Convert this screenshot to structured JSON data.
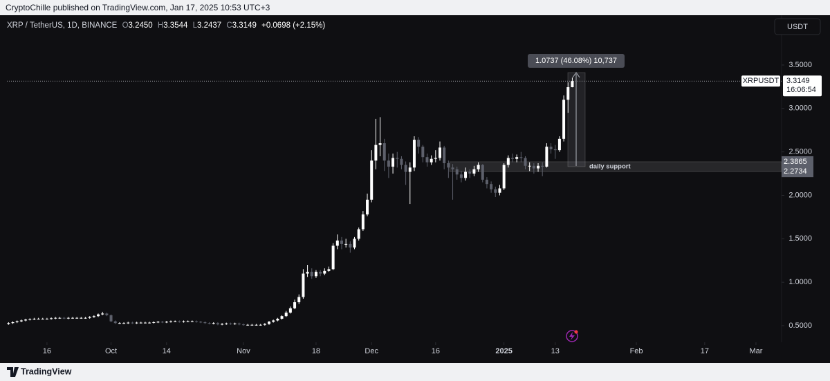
{
  "header": {
    "publisher": "CryptoChille published on TradingView.com, Jan 17, 2025 10:53 UTC+3"
  },
  "chart_data": {
    "type": "candlestick",
    "title": "XRP / TetherUS, 1D, BINANCE",
    "legend": {
      "o": "O",
      "open": "3.2450",
      "h": "H",
      "high": "3.3544",
      "l": "L",
      "low": "3.2437",
      "c": "C",
      "close": "3.3149",
      "change": "+0.0698 (+2.15%)"
    },
    "currency": "USDT",
    "up_color": "#ffffff",
    "down_color": "#5d606b",
    "xlim": [
      -2,
      181
    ],
    "xticks": [
      {
        "value": 9,
        "label": "16"
      },
      {
        "value": 24,
        "label": "Oct"
      },
      {
        "value": 37,
        "label": "14"
      },
      {
        "value": 55,
        "label": "Nov"
      },
      {
        "value": 72,
        "label": "18"
      },
      {
        "value": 85,
        "label": "Dec"
      },
      {
        "value": 100,
        "label": "16"
      },
      {
        "value": 116,
        "label": "2025"
      },
      {
        "value": 128,
        "label": "13"
      },
      {
        "value": 147,
        "label": "Feb"
      },
      {
        "value": 163,
        "label": "17"
      },
      {
        "value": 175,
        "label": "Mar"
      }
    ],
    "ylim": [
      0.309,
      4.073
    ],
    "yticks": [
      {
        "value": 0.5,
        "label": "0.5000"
      },
      {
        "value": 1,
        "label": "1.0000"
      },
      {
        "value": 1.5,
        "label": "1.5000"
      },
      {
        "value": 2,
        "label": "2.0000"
      },
      {
        "value": 2.5,
        "label": "2.5000"
      },
      {
        "value": 3,
        "label": "3.0000"
      },
      {
        "value": 3.5,
        "label": "3.5000"
      }
    ],
    "open": [
      0.52,
      0.53,
      0.54,
      0.55,
      0.56,
      0.57,
      0.575,
      0.58,
      0.58,
      0.58,
      0.58,
      0.585,
      0.59,
      0.59,
      0.585,
      0.59,
      0.59,
      0.59,
      0.59,
      0.59,
      0.6,
      0.61,
      0.63,
      0.64,
      0.62,
      0.55,
      0.53,
      0.53,
      0.53,
      0.535,
      0.53,
      0.535,
      0.535,
      0.535,
      0.535,
      0.54,
      0.545,
      0.54,
      0.545,
      0.55,
      0.55,
      0.545,
      0.55,
      0.55,
      0.55,
      0.545,
      0.54,
      0.53,
      0.525,
      0.53,
      0.515,
      0.52,
      0.525,
      0.52,
      0.525,
      0.515,
      0.51,
      0.51,
      0.51,
      0.51,
      0.51,
      0.52,
      0.545,
      0.56,
      0.58,
      0.61,
      0.65,
      0.7,
      0.77,
      0.83,
      1.1,
      1.12,
      1.07,
      1.12,
      1.1,
      1.13,
      1.15,
      1.42,
      1.48,
      1.44,
      1.44,
      1.4,
      1.5,
      1.61,
      1.78,
      1.95,
      2.4,
      2.58,
      2.6,
      2.4,
      2.33,
      2.43,
      2.42,
      2.35,
      2.27,
      2.32,
      2.64,
      2.56,
      2.44,
      2.38,
      2.42,
      2.43,
      2.55,
      2.37,
      2.32,
      2.3,
      2.24,
      2.2,
      2.27,
      2.25,
      2.3,
      2.35,
      2.18,
      2.13,
      2.07,
      2.03,
      2.08,
      2.35,
      2.43,
      2.42,
      2.44,
      2.43,
      2.34,
      2.34,
      2.31,
      2.34,
      2.33,
      2.56,
      2.53,
      2.52,
      2.65,
      3.1,
      3.245
    ],
    "high": [
      0.54,
      0.55,
      0.56,
      0.57,
      0.58,
      0.585,
      0.59,
      0.59,
      0.59,
      0.59,
      0.595,
      0.6,
      0.6,
      0.6,
      0.6,
      0.6,
      0.6,
      0.6,
      0.6,
      0.61,
      0.62,
      0.64,
      0.66,
      0.65,
      0.63,
      0.56,
      0.54,
      0.54,
      0.545,
      0.545,
      0.545,
      0.545,
      0.545,
      0.545,
      0.55,
      0.555,
      0.555,
      0.555,
      0.56,
      0.56,
      0.56,
      0.56,
      0.56,
      0.56,
      0.56,
      0.555,
      0.55,
      0.54,
      0.54,
      0.54,
      0.53,
      0.535,
      0.535,
      0.535,
      0.535,
      0.525,
      0.52,
      0.52,
      0.52,
      0.52,
      0.53,
      0.555,
      0.57,
      0.59,
      0.62,
      0.67,
      0.72,
      0.8,
      0.86,
      1.15,
      1.2,
      1.16,
      1.14,
      1.14,
      1.16,
      1.18,
      1.45,
      1.55,
      1.52,
      1.5,
      1.47,
      1.52,
      1.63,
      1.82,
      2.02,
      2.52,
      2.88,
      2.9,
      2.65,
      2.48,
      2.48,
      2.5,
      2.45,
      2.39,
      2.38,
      2.68,
      2.67,
      2.58,
      2.48,
      2.46,
      2.52,
      2.62,
      2.57,
      2.4,
      2.36,
      2.33,
      2.28,
      2.32,
      2.3,
      2.34,
      2.38,
      2.36,
      2.21,
      2.16,
      2.1,
      2.12,
      2.37,
      2.46,
      2.48,
      2.47,
      2.5,
      2.45,
      2.38,
      2.37,
      2.37,
      2.38,
      2.6,
      2.6,
      2.58,
      2.68,
      3.15,
      3.3,
      3.3544
    ],
    "low": [
      0.51,
      0.52,
      0.53,
      0.54,
      0.55,
      0.56,
      0.565,
      0.57,
      0.57,
      0.57,
      0.57,
      0.575,
      0.58,
      0.575,
      0.575,
      0.58,
      0.58,
      0.58,
      0.58,
      0.58,
      0.59,
      0.6,
      0.62,
      0.61,
      0.54,
      0.52,
      0.52,
      0.52,
      0.52,
      0.52,
      0.52,
      0.525,
      0.525,
      0.525,
      0.525,
      0.53,
      0.53,
      0.53,
      0.535,
      0.54,
      0.535,
      0.535,
      0.54,
      0.54,
      0.535,
      0.53,
      0.52,
      0.515,
      0.515,
      0.505,
      0.505,
      0.51,
      0.51,
      0.51,
      0.505,
      0.5,
      0.5,
      0.5,
      0.5,
      0.5,
      0.5,
      0.51,
      0.535,
      0.55,
      0.57,
      0.6,
      0.64,
      0.69,
      0.75,
      0.81,
      1.06,
      1.04,
      1.05,
      1.07,
      1.08,
      1.12,
      1.14,
      1.38,
      1.38,
      1.4,
      1.34,
      1.38,
      1.48,
      1.59,
      1.76,
      1.92,
      2.3,
      2.45,
      2.28,
      2.2,
      2.25,
      2.32,
      2.3,
      2.12,
      1.9,
      2.28,
      2.48,
      2.38,
      2.33,
      2.35,
      2.38,
      2.4,
      2.3,
      2.2,
      1.95,
      2.18,
      2.15,
      2.17,
      2.2,
      2.22,
      2.27,
      2.15,
      2.08,
      2.03,
      1.98,
      2,
      2.06,
      2.32,
      2.38,
      2.38,
      2.38,
      2.3,
      2.28,
      2.25,
      2.27,
      2.22,
      2.32,
      2.48,
      2.42,
      2.5,
      2.62,
      2.95,
      3.2437
    ],
    "close": [
      0.53,
      0.54,
      0.55,
      0.56,
      0.57,
      0.575,
      0.58,
      0.58,
      0.58,
      0.58,
      0.585,
      0.59,
      0.59,
      0.585,
      0.59,
      0.59,
      0.59,
      0.59,
      0.59,
      0.6,
      0.61,
      0.63,
      0.64,
      0.62,
      0.55,
      0.53,
      0.53,
      0.53,
      0.535,
      0.53,
      0.535,
      0.535,
      0.535,
      0.535,
      0.54,
      0.545,
      0.54,
      0.545,
      0.55,
      0.55,
      0.545,
      0.55,
      0.55,
      0.55,
      0.545,
      0.54,
      0.53,
      0.525,
      0.53,
      0.515,
      0.52,
      0.525,
      0.52,
      0.525,
      0.515,
      0.51,
      0.51,
      0.51,
      0.51,
      0.51,
      0.52,
      0.545,
      0.56,
      0.58,
      0.61,
      0.65,
      0.7,
      0.77,
      0.83,
      1.1,
      1.12,
      1.07,
      1.12,
      1.1,
      1.13,
      1.15,
      1.42,
      1.48,
      1.44,
      1.44,
      1.4,
      1.5,
      1.61,
      1.78,
      1.95,
      2.4,
      2.58,
      2.6,
      2.4,
      2.33,
      2.43,
      2.42,
      2.35,
      2.27,
      2.32,
      2.64,
      2.56,
      2.44,
      2.38,
      2.42,
      2.43,
      2.55,
      2.37,
      2.32,
      2.3,
      2.24,
      2.2,
      2.27,
      2.25,
      2.3,
      2.35,
      2.18,
      2.13,
      2.07,
      2.03,
      2.08,
      2.35,
      2.43,
      2.42,
      2.44,
      2.43,
      2.34,
      2.34,
      2.31,
      2.34,
      2.33,
      2.56,
      2.53,
      2.52,
      2.65,
      3.1,
      3.245,
      3.3149
    ],
    "last_price": 3.3149,
    "price_label": {
      "symbol": "XRPUSDT",
      "countdown": "16:06:54"
    },
    "measure": "1.0737 (46.08%) 10,737",
    "support": {
      "label": "daily support",
      "top": 2.3865,
      "bottom": 2.2734
    }
  },
  "footer": {
    "brand": "TradingView"
  }
}
